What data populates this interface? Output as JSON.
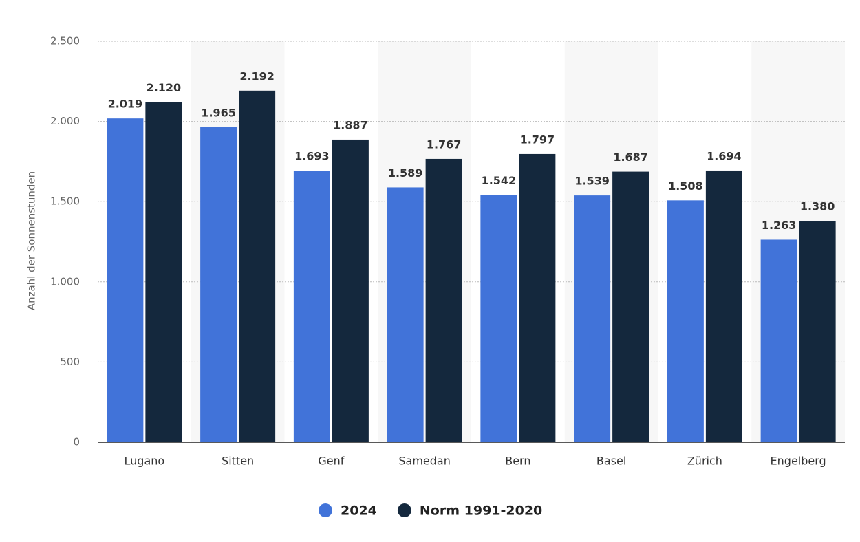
{
  "chart_data": {
    "type": "bar",
    "y_label": "Anzahl der Sonnenstunden",
    "categories": [
      "Lugano",
      "Sitten",
      "Genf",
      "Samedan",
      "Bern",
      "Basel",
      "Zürich",
      "Engelberg"
    ],
    "series": [
      {
        "name": "2024",
        "color": "#4173d9",
        "values": [
          2019,
          1965,
          1693,
          1589,
          1542,
          1539,
          1508,
          1263
        ],
        "value_labels": [
          "2.019",
          "1.965",
          "1.693",
          "1.589",
          "1.542",
          "1.539",
          "1.508",
          "1.263"
        ]
      },
      {
        "name": "Norm 1991-2020",
        "color": "#14283d",
        "values": [
          2120,
          2192,
          1887,
          1767,
          1797,
          1687,
          1694,
          1380
        ],
        "value_labels": [
          "2.120",
          "2.192",
          "1.887",
          "1.767",
          "1.797",
          "1.687",
          "1.694",
          "1.380"
        ]
      }
    ],
    "ylim": [
      0,
      2500
    ],
    "yticks": [
      0,
      {
        "value": 500,
        "label": "500"
      },
      {
        "value": 1000,
        "label": "1.000"
      },
      {
        "value": 1500,
        "label": "1.500"
      },
      {
        "value": 2000,
        "label": "2.000"
      },
      {
        "value": 2500,
        "label": "2.500"
      }
    ],
    "grid": true
  }
}
